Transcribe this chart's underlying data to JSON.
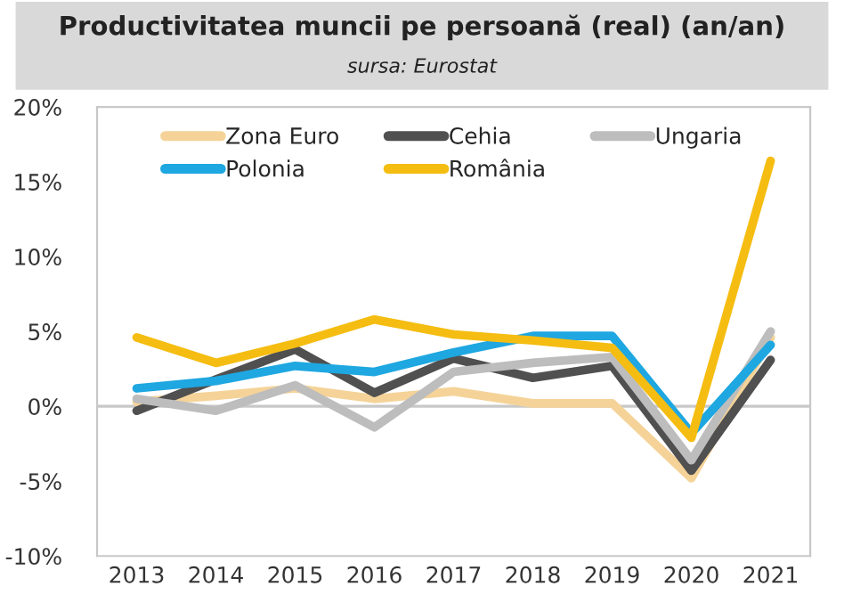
{
  "chart_data": {
    "type": "line",
    "title": "Productivitatea muncii pe persoană (real) (an/an)",
    "subtitle": "sursa: Eurostat",
    "categories": [
      "2013",
      "2014",
      "2015",
      "2016",
      "2017",
      "2018",
      "2019",
      "2020",
      "2021"
    ],
    "series": [
      {
        "name": "Zona Euro",
        "color": "#f5d398",
        "values": [
          0.3,
          0.7,
          1.2,
          0.5,
          1.0,
          0.2,
          0.2,
          -4.8,
          4.6
        ]
      },
      {
        "name": "Cehia",
        "color": "#505050",
        "values": [
          -0.3,
          1.8,
          3.8,
          0.9,
          3.2,
          1.9,
          2.7,
          -4.3,
          3.1
        ]
      },
      {
        "name": "Ungaria",
        "color": "#bdbdbd",
        "values": [
          0.5,
          -0.3,
          1.4,
          -1.4,
          2.3,
          2.9,
          3.3,
          -3.6,
          5.0
        ]
      },
      {
        "name": "Polonia",
        "color": "#1ea7e0",
        "values": [
          1.2,
          1.7,
          2.7,
          2.3,
          3.6,
          4.7,
          4.7,
          -1.8,
          4.1
        ]
      },
      {
        "name": "România",
        "color": "#f5bd12",
        "values": [
          4.6,
          2.9,
          4.2,
          5.8,
          4.8,
          4.4,
          3.9,
          -2.1,
          16.4
        ]
      }
    ],
    "ylim": [
      -10,
      20
    ],
    "yticks": [
      {
        "value": -10,
        "label": "-10%"
      },
      {
        "value": -5,
        "label": "-5%"
      },
      {
        "value": 0,
        "label": "0%"
      },
      {
        "value": 5,
        "label": "5%"
      },
      {
        "value": 10,
        "label": "10%"
      },
      {
        "value": 15,
        "label": "15%"
      },
      {
        "value": 20,
        "label": "20%"
      }
    ],
    "ref_lines": [
      {
        "axis": "y",
        "value": 0,
        "color": "#c8c8c8"
      }
    ],
    "grid": false,
    "legend": "top",
    "marker": "none",
    "line_style": "solid"
  }
}
